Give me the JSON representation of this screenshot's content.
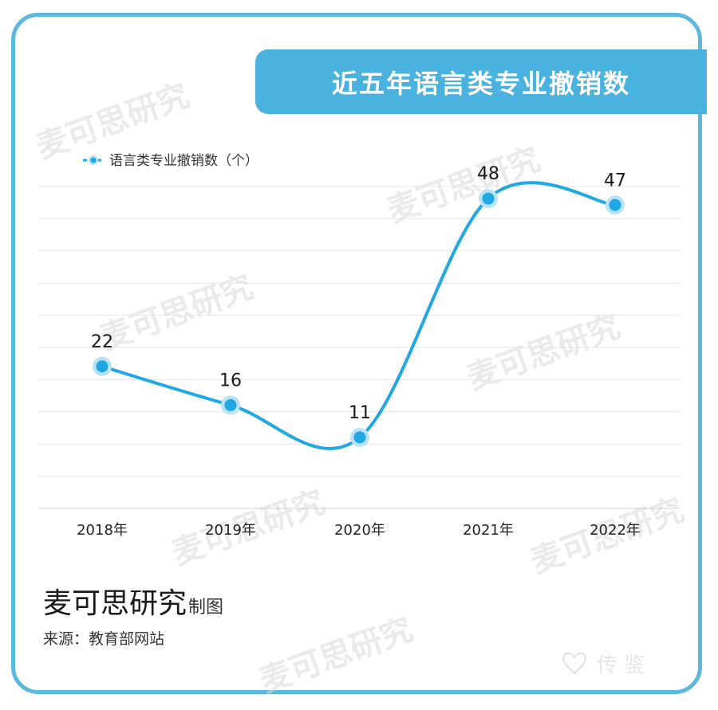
{
  "title": "近五年语言类专业撤销数",
  "watermark_text": "麦可思研究",
  "footer": {
    "brand": "麦可思研究",
    "suffix": "制图",
    "source": "来源：教育部网站"
  },
  "colors": {
    "accent": "#4ab2de",
    "line": "#1fa8e4",
    "point": "#1fa8e4",
    "point_halo": "#b8e2f6",
    "frame": "#5bb8df",
    "grid": "#e6e6e6"
  },
  "chart_data": {
    "type": "line",
    "categories": [
      "2018年",
      "2019年",
      "2020年",
      "2021年",
      "2022年"
    ],
    "series": [
      {
        "name": "语言类专业撤销数（个）",
        "values": [
          22,
          16,
          11,
          48,
          47
        ]
      }
    ],
    "data_labels": [
      "22",
      "16",
      "11",
      "48",
      "47"
    ],
    "smooth": true,
    "grid": true,
    "legend_position": "top-left",
    "ylim": [
      0,
      55
    ]
  }
}
